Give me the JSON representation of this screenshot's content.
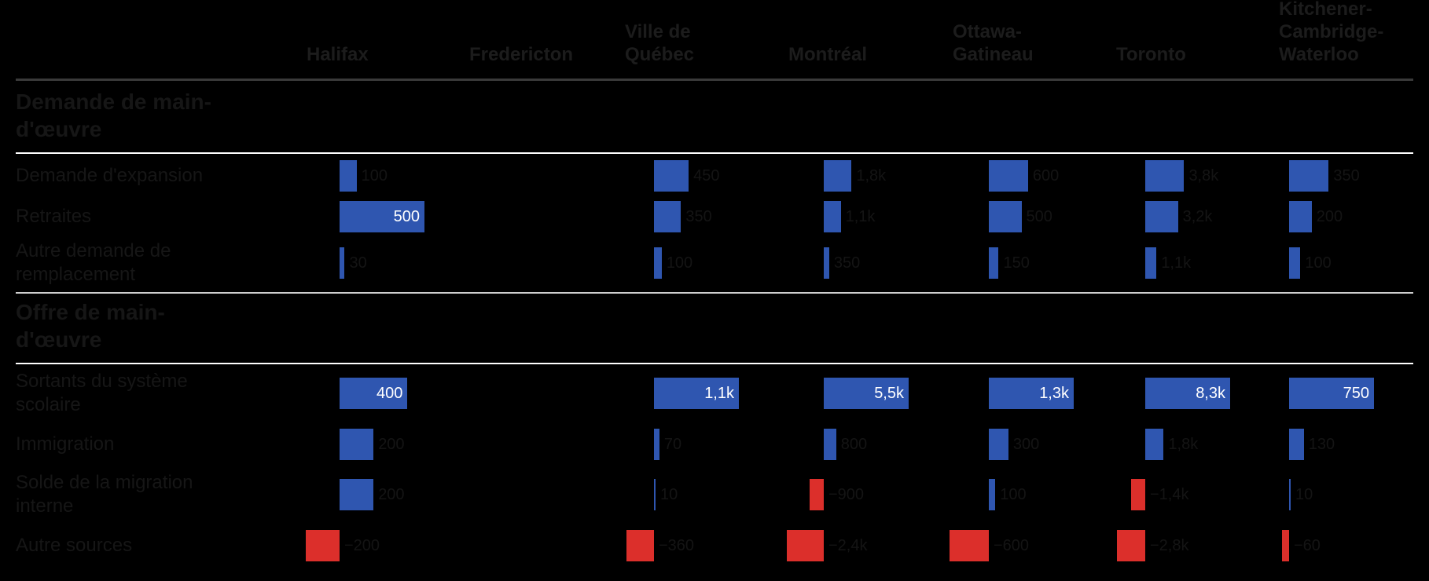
{
  "colors": {
    "positive": "#2f56b0",
    "negative": "#dc2f2b",
    "heading_rule": "#3a3a3a",
    "section_rule": "#ffffff",
    "separator": "#cfcfcf"
  },
  "chart_data": {
    "type": "table",
    "columns": [
      "Halifax",
      "Fredericton",
      "Ville de Québec",
      "Montréal",
      "Ottawa-Gatineau",
      "Toronto",
      "Kitchener-Cambridge-Waterloo"
    ],
    "column_labels": [
      "Halifax",
      "Fredericton",
      "Ville de\nQuébec",
      "Montréal",
      "Ottawa-\nGatineau",
      "Toronto",
      "Kitchener-\nCambridge-\nWaterloo"
    ],
    "sections": [
      {
        "title": "Demande de main-\nd'œuvre",
        "rows": [
          {
            "label": "Demande d'expansion",
            "values": [
              100,
              null,
              450,
              1800,
              600,
              3800,
              350
            ],
            "labels": [
              "100",
              "",
              "450",
              "1,8k",
              "600",
              "3,8k",
              "350"
            ]
          },
          {
            "label": "Retraites",
            "values": [
              500,
              null,
              350,
              1100,
              500,
              3200,
              200
            ],
            "labels": [
              "500",
              "",
              "350",
              "1,1k",
              "500",
              "3,2k",
              "200"
            ]
          },
          {
            "label": "Autre demande de\nremplacement",
            "values": [
              30,
              null,
              100,
              350,
              150,
              1100,
              100
            ],
            "labels": [
              "30",
              "",
              "100",
              "350",
              "150",
              "1,1k",
              "100"
            ]
          }
        ]
      },
      {
        "title": "Offre de main-\nd'œuvre",
        "rows": [
          {
            "label": "Sortants du système\nscolaire",
            "values": [
              400,
              null,
              1100,
              5500,
              1300,
              8300,
              750
            ],
            "labels": [
              "400",
              "",
              "1,1k",
              "5,5k",
              "1,3k",
              "8,3k",
              "750"
            ]
          },
          {
            "label": "Immigration",
            "values": [
              200,
              null,
              70,
              800,
              300,
              1800,
              130
            ],
            "labels": [
              "200",
              "",
              "70",
              "800",
              "300",
              "1,8k",
              "130"
            ]
          },
          {
            "label": "Solde de la migration\ninterne",
            "values": [
              200,
              null,
              10,
              -900,
              100,
              -1400,
              10
            ],
            "labels": [
              "200",
              "",
              "10",
              "−900",
              "100",
              "−1,4k",
              "10"
            ]
          },
          {
            "label": "Autre sources",
            "values": [
              -200,
              null,
              -360,
              -2400,
              -600,
              -2800,
              -60
            ],
            "labels": [
              "−200",
              "",
              "−360",
              "−2,4k",
              "−600",
              "−2,8k",
              "−60"
            ]
          }
        ]
      }
    ]
  }
}
